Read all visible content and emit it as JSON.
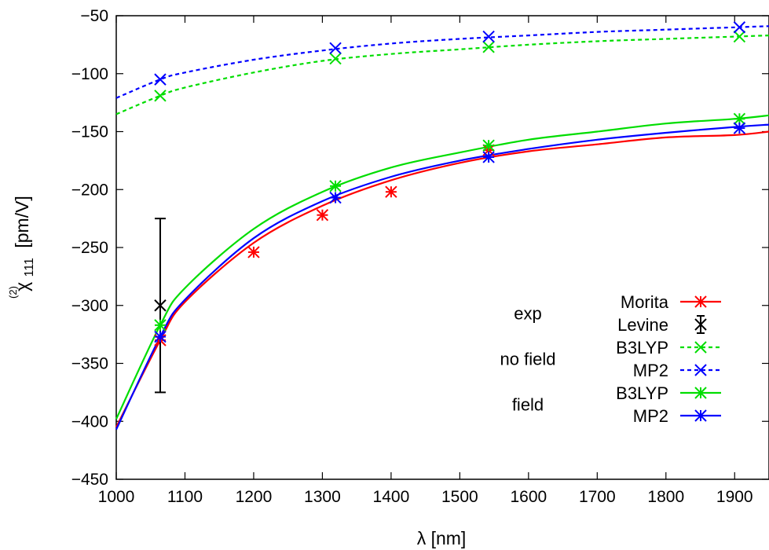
{
  "chart_data": {
    "type": "line",
    "xlabel": "λ [nm]",
    "ylabel": {
      "symbol": "χ",
      "superscript": "(2)",
      "subscript": "111",
      "unit": "[pm/V]"
    },
    "xlim": [
      1000,
      1950
    ],
    "ylim": [
      -450,
      -50
    ],
    "xticks": [
      1000,
      1100,
      1200,
      1300,
      1400,
      1500,
      1600,
      1700,
      1800,
      1900
    ],
    "yticks": [
      -450,
      -400,
      -350,
      -300,
      -250,
      -200,
      -150,
      -100,
      -50
    ],
    "grid": false,
    "legend_position": "bottom-right",
    "legend_groups": [
      "exp",
      "no field",
      "field"
    ],
    "series": [
      {
        "name": "Morita",
        "group": "exp",
        "color": "#ff0000",
        "style": "solid",
        "marker": "asterisk",
        "points": [
          [
            1064,
            -330
          ],
          [
            1200,
            -254
          ],
          [
            1300,
            -222
          ],
          [
            1400,
            -202
          ],
          [
            1542,
            -166
          ]
        ],
        "curve": [
          [
            1000,
            -405
          ],
          [
            1064,
            -330
          ],
          [
            1100,
            -297
          ],
          [
            1200,
            -246
          ],
          [
            1300,
            -214
          ],
          [
            1400,
            -192
          ],
          [
            1500,
            -177
          ],
          [
            1600,
            -167
          ],
          [
            1700,
            -161
          ],
          [
            1800,
            -155
          ],
          [
            1900,
            -153
          ],
          [
            1950,
            -150
          ]
        ]
      },
      {
        "name": "Levine",
        "group": "exp",
        "color": "#000000",
        "style": "errorbar",
        "marker": "x",
        "points": [
          [
            1064,
            -300
          ]
        ],
        "errors": [
          [
            -375,
            -225
          ]
        ]
      },
      {
        "name": "B3LYP",
        "group": "no field",
        "color": "#00dd00",
        "style": "dashed",
        "marker": "x",
        "points": [
          [
            1064,
            -119
          ],
          [
            1319,
            -87
          ],
          [
            1542,
            -77
          ],
          [
            1907,
            -68
          ]
        ],
        "curve": [
          [
            1000,
            -135
          ],
          [
            1064,
            -119
          ],
          [
            1100,
            -112
          ],
          [
            1200,
            -99
          ],
          [
            1300,
            -89
          ],
          [
            1400,
            -83
          ],
          [
            1500,
            -79
          ],
          [
            1600,
            -75
          ],
          [
            1700,
            -72
          ],
          [
            1800,
            -70
          ],
          [
            1900,
            -68
          ],
          [
            1950,
            -67
          ]
        ]
      },
      {
        "name": "MP2",
        "group": "no field",
        "color": "#0000ff",
        "style": "dashed",
        "marker": "x",
        "points": [
          [
            1064,
            -105
          ],
          [
            1319,
            -78
          ],
          [
            1542,
            -68
          ],
          [
            1907,
            -60
          ]
        ],
        "curve": [
          [
            1000,
            -121
          ],
          [
            1064,
            -105
          ],
          [
            1100,
            -99
          ],
          [
            1200,
            -88
          ],
          [
            1300,
            -80
          ],
          [
            1400,
            -74
          ],
          [
            1500,
            -70
          ],
          [
            1600,
            -67
          ],
          [
            1700,
            -64
          ],
          [
            1800,
            -62
          ],
          [
            1900,
            -60
          ],
          [
            1950,
            -59
          ]
        ]
      },
      {
        "name": "B3LYP",
        "group": "field",
        "color": "#00dd00",
        "style": "solid",
        "marker": "asterisk",
        "points": [
          [
            1064,
            -317
          ],
          [
            1319,
            -197
          ],
          [
            1542,
            -162
          ],
          [
            1907,
            -139
          ]
        ],
        "curve": [
          [
            1000,
            -398
          ],
          [
            1064,
            -317
          ],
          [
            1100,
            -285
          ],
          [
            1200,
            -234
          ],
          [
            1300,
            -202
          ],
          [
            1400,
            -181
          ],
          [
            1500,
            -168
          ],
          [
            1600,
            -157
          ],
          [
            1700,
            -150
          ],
          [
            1800,
            -143
          ],
          [
            1900,
            -139
          ],
          [
            1950,
            -136
          ]
        ]
      },
      {
        "name": "MP2",
        "group": "field",
        "color": "#0000ff",
        "style": "solid",
        "marker": "asterisk",
        "points": [
          [
            1064,
            -327
          ],
          [
            1319,
            -207
          ],
          [
            1542,
            -172
          ],
          [
            1907,
            -147
          ]
        ],
        "curve": [
          [
            1000,
            -407
          ],
          [
            1064,
            -327
          ],
          [
            1100,
            -295
          ],
          [
            1200,
            -242
          ],
          [
            1300,
            -210
          ],
          [
            1400,
            -189
          ],
          [
            1500,
            -175
          ],
          [
            1600,
            -165
          ],
          [
            1700,
            -157
          ],
          [
            1800,
            -151
          ],
          [
            1900,
            -146
          ],
          [
            1950,
            -144
          ]
        ]
      }
    ]
  }
}
